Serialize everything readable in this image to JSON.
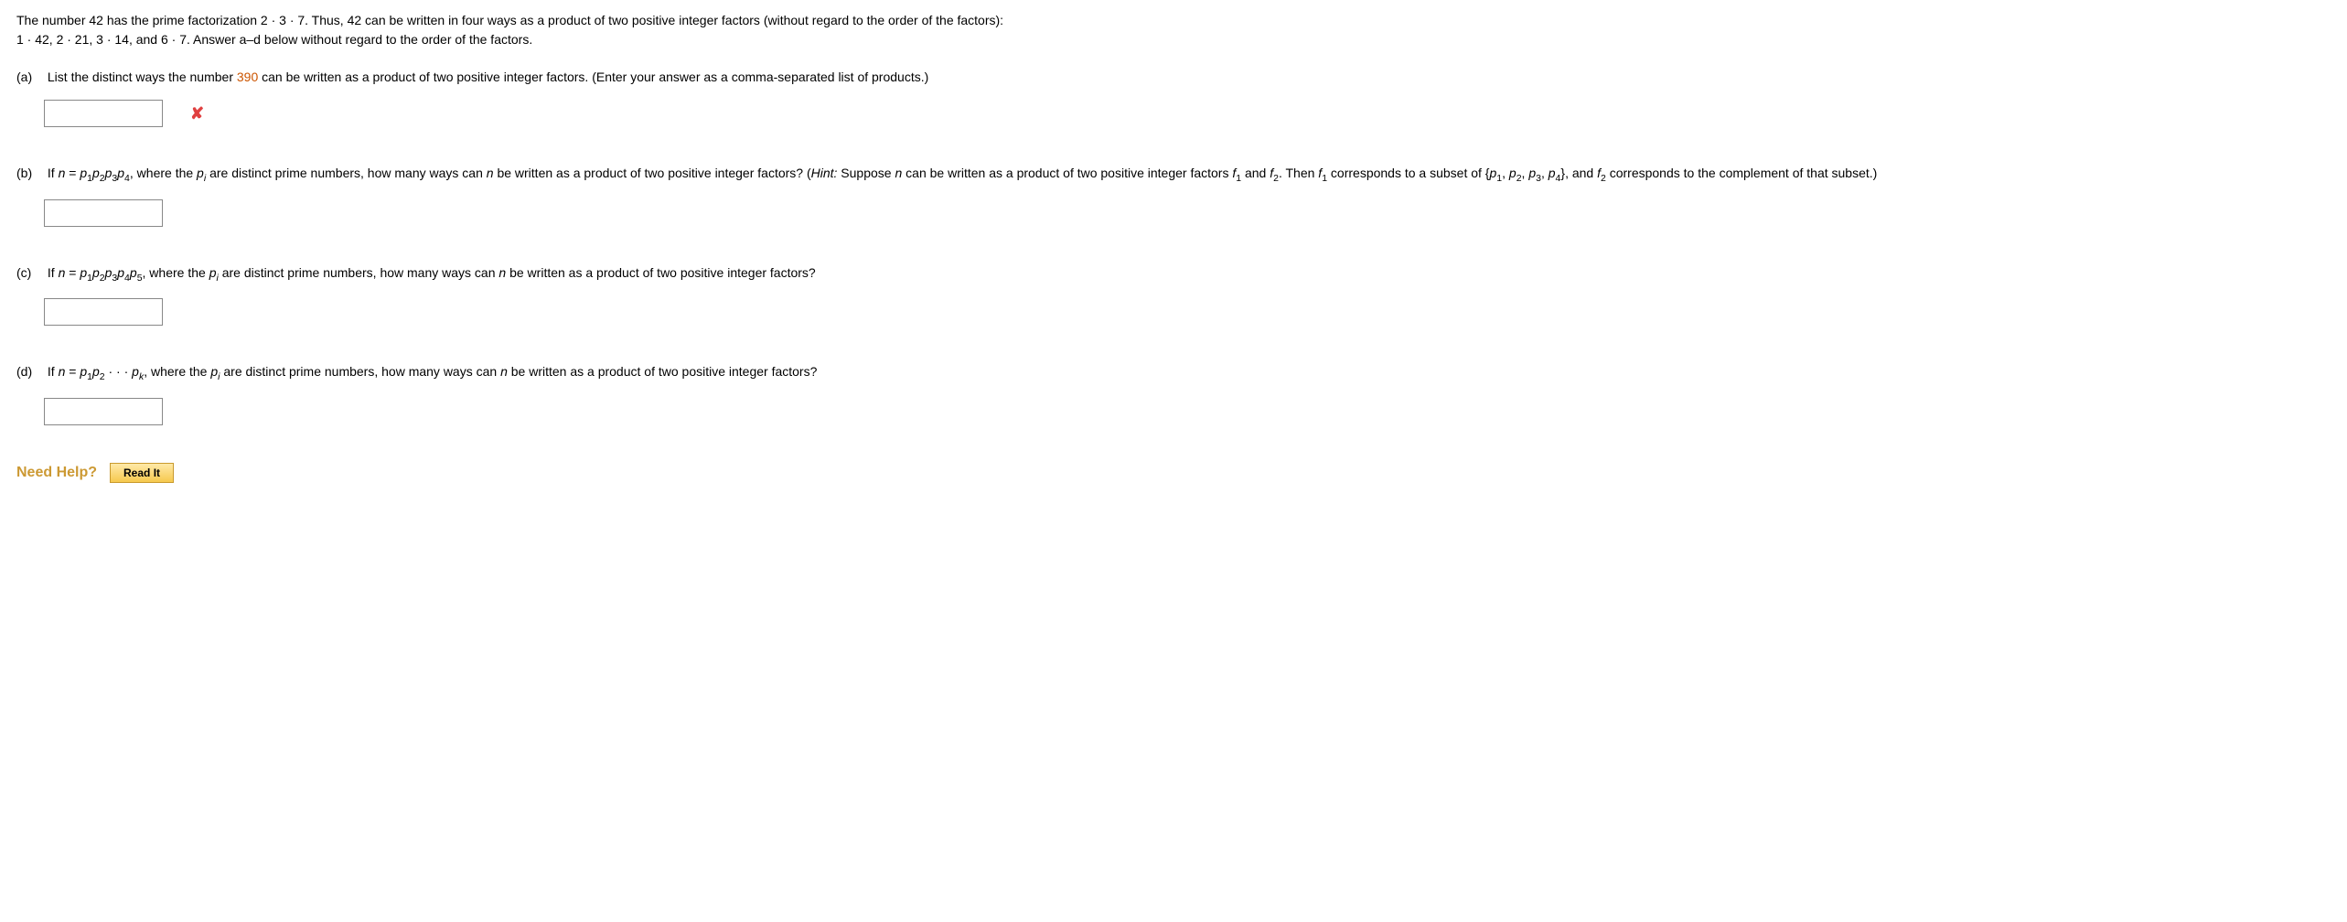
{
  "intro": {
    "line1_pre": "The number 42 has the prime factorization 2 · 3 · 7. Thus, 42 can be written in four ways as a product of two positive integer factors (without regard to the order of the factors):",
    "line2": "1 · 42, 2 · 21, 3 · 14, and 6 · 7. Answer a–d below without regard to the order of the factors."
  },
  "parts": {
    "a": {
      "label": "(a)",
      "text_pre": "List the distinct ways the number ",
      "highlight": "390",
      "text_post": " can be written as a product of two positive integer factors. (Enter your answer as a comma-separated list of products.)",
      "wrong": "✘"
    },
    "b": {
      "label": "(b)",
      "html": "If <span class=\"italic\">n</span> = <span class=\"italic\">p</span><sub>1</sub><span class=\"italic\">p</span><sub>2</sub><span class=\"italic\">p</span><sub>3</sub><span class=\"italic\">p</span><sub>4</sub>, where the <span class=\"italic\">p<sub>i</sub></span> are distinct prime numbers, how many ways can <span class=\"italic\">n</span> be written as a product of two positive integer factors? (<span class=\"italic\">Hint:</span> Suppose <span class=\"italic\">n</span> can be written as a product of two positive integer factors <span class=\"italic\">f</span><sub>1</sub> and <span class=\"italic\">f</span><sub>2</sub>. Then <span class=\"italic\">f</span><sub>1</sub> corresponds to a subset of {<span class=\"italic\">p</span><sub>1</sub>, <span class=\"italic\">p</span><sub>2</sub>, <span class=\"italic\">p</span><sub>3</sub>, <span class=\"italic\">p</span><sub>4</sub>}, and <span class=\"italic\">f</span><sub>2</sub> corresponds to the complement of that subset.)"
    },
    "c": {
      "label": "(c)",
      "html": "If <span class=\"italic\">n</span> = <span class=\"italic\">p</span><sub>1</sub><span class=\"italic\">p</span><sub>2</sub><span class=\"italic\">p</span><sub>3</sub><span class=\"italic\">p</span><sub>4</sub><span class=\"italic\">p</span><sub>5</sub>, where the <span class=\"italic\">p<sub>i</sub></span> are distinct prime numbers, how many ways can <span class=\"italic\">n</span> be written as a product of two positive integer factors?"
    },
    "d": {
      "label": "(d)",
      "html": "If <span class=\"italic\">n</span> = <span class=\"italic\">p</span><sub>1</sub><span class=\"italic\">p</span><sub>2</sub> · · · <span class=\"italic\">p<sub>k</sub></span>, where the <span class=\"italic\">p<sub>i</sub></span> are distinct prime numbers, how many ways can <span class=\"italic\">n</span> be written as a product of two positive integer factors?"
    }
  },
  "help": {
    "label": "Need Help?",
    "read_it": "Read It"
  }
}
